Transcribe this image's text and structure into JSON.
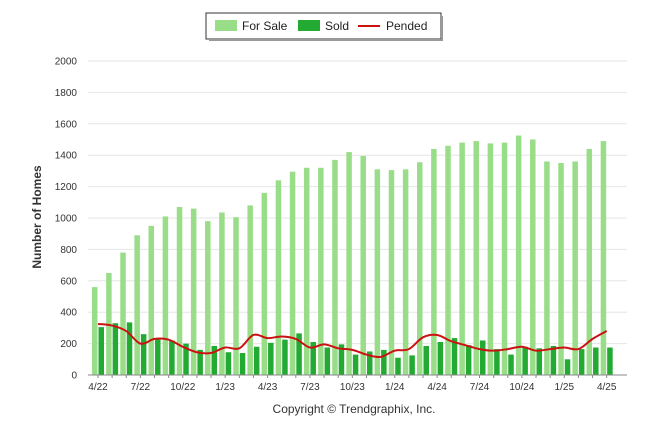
{
  "chart_data": {
    "type": "bar",
    "title": "",
    "ylabel": "Number of Homes",
    "xlabel": "",
    "ylim": [
      0,
      2000
    ],
    "yticks": [
      0,
      200,
      400,
      600,
      800,
      1000,
      1200,
      1400,
      1600,
      1800,
      2000
    ],
    "categories": [
      "Apr 22",
      "May 22",
      "Jun 22",
      "Jul 22",
      "Aug 22",
      "Sep 22",
      "Oct 22",
      "Nov 22",
      "Dec 22",
      "Jan 23",
      "Feb 23",
      "Mar 23",
      "Apr 23",
      "May 23",
      "Jun 23",
      "Jul 23",
      "Aug 23",
      "Sep 23",
      "Oct 23",
      "Nov 23",
      "Dec 23",
      "Jan 24",
      "Feb 24",
      "Mar 24",
      "Apr 24",
      "May 24",
      "Jun 24",
      "Jul 24",
      "Aug 24",
      "Sep 24",
      "Oct 24",
      "Nov 24",
      "Dec 24",
      "Jan 25",
      "Feb 25",
      "Mar 25",
      "Apr 25"
    ],
    "xtick_labels": [
      {
        "index": 0,
        "label": "4/22"
      },
      {
        "index": 3,
        "label": "7/22"
      },
      {
        "index": 6,
        "label": "10/22"
      },
      {
        "index": 9,
        "label": "1/23"
      },
      {
        "index": 12,
        "label": "4/23"
      },
      {
        "index": 15,
        "label": "7/23"
      },
      {
        "index": 18,
        "label": "10/23"
      },
      {
        "index": 21,
        "label": "1/24"
      },
      {
        "index": 24,
        "label": "4/24"
      },
      {
        "index": 27,
        "label": "7/24"
      },
      {
        "index": 30,
        "label": "10/24"
      },
      {
        "index": 33,
        "label": "1/25"
      },
      {
        "index": 36,
        "label": "4/25"
      }
    ],
    "series": [
      {
        "name": "For Sale",
        "kind": "bar",
        "color": "#99dd88",
        "values": [
          560,
          650,
          780,
          890,
          950,
          1010,
          1070,
          1060,
          980,
          1035,
          1005,
          1080,
          1160,
          1240,
          1295,
          1320,
          1320,
          1370,
          1420,
          1395,
          1310,
          1305,
          1310,
          1355,
          1440,
          1460,
          1480,
          1490,
          1475,
          1480,
          1525,
          1500,
          1360,
          1350,
          1360,
          1440,
          1490
        ]
      },
      {
        "name": "Sold",
        "kind": "bar",
        "color": "#22aa33",
        "values": [
          305,
          330,
          335,
          260,
          235,
          220,
          200,
          160,
          185,
          145,
          140,
          180,
          205,
          225,
          265,
          210,
          175,
          195,
          130,
          150,
          160,
          110,
          125,
          185,
          210,
          235,
          190,
          220,
          165,
          130,
          180,
          170,
          185,
          100,
          165,
          175,
          175
        ]
      },
      {
        "name": "Pended",
        "kind": "line",
        "color": "#cc1111",
        "values": [
          325,
          315,
          280,
          200,
          230,
          225,
          180,
          145,
          140,
          175,
          170,
          255,
          235,
          245,
          230,
          175,
          195,
          170,
          160,
          130,
          115,
          155,
          165,
          240,
          255,
          215,
          190,
          165,
          155,
          165,
          180,
          155,
          165,
          175,
          165,
          230,
          280
        ]
      }
    ],
    "legend_position": "top-center",
    "grid": true,
    "footer": "Copyright © Trendgraphix, Inc."
  }
}
